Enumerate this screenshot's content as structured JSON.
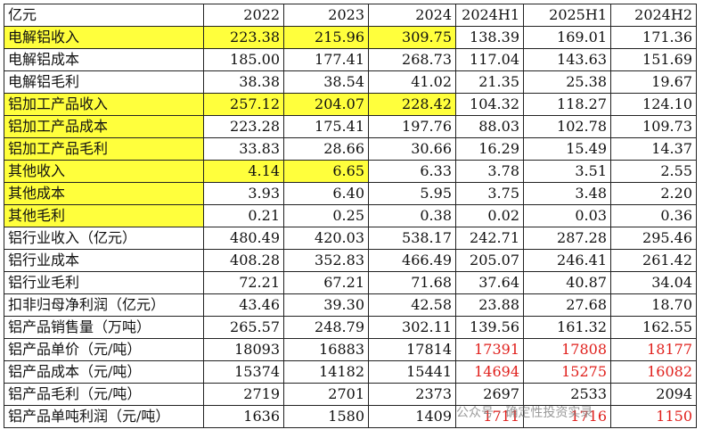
{
  "table": {
    "header": [
      "亿元",
      "2022",
      "2023",
      "2024",
      "2024H1",
      "2025H1",
      "2024H2"
    ],
    "rows": [
      [
        "电解铝收入",
        "223.38",
        "215.96",
        "309.75",
        "138.39",
        "169.01",
        "171.36"
      ],
      [
        "电解铝成本",
        "185.00",
        "177.41",
        "268.73",
        "117.04",
        "143.63",
        "151.69"
      ],
      [
        "电解铝毛利",
        "38.38",
        "38.54",
        "41.02",
        "21.35",
        "25.38",
        "19.67"
      ],
      [
        "铝加工产品收入",
        "257.12",
        "204.07",
        "228.42",
        "104.32",
        "118.27",
        "124.10"
      ],
      [
        "铝加工产品成本",
        "223.28",
        "175.41",
        "197.76",
        "88.03",
        "102.78",
        "109.73"
      ],
      [
        "铝加工产品毛利",
        "33.83",
        "28.66",
        "30.66",
        "16.29",
        "15.49",
        "14.37"
      ],
      [
        "其他收入",
        "4.14",
        "6.65",
        "6.33",
        "3.78",
        "3.51",
        "2.55"
      ],
      [
        "其他成本",
        "3.93",
        "6.40",
        "5.95",
        "3.75",
        "3.48",
        "2.20"
      ],
      [
        "其他毛利",
        "0.21",
        "0.25",
        "0.38",
        "0.02",
        "0.03",
        "0.36"
      ],
      [
        "铝行业收入（亿元）",
        "480.49",
        "420.03",
        "538.17",
        "242.71",
        "287.28",
        "295.46"
      ],
      [
        "铝行业成本",
        "408.28",
        "352.83",
        "466.49",
        "205.07",
        "246.41",
        "261.42"
      ],
      [
        "铝行业毛利",
        "72.21",
        "67.21",
        "71.68",
        "37.64",
        "40.87",
        "34.04"
      ],
      [
        "扣非归母净利润（亿元）",
        "43.46",
        "39.30",
        "42.58",
        "23.88",
        "27.68",
        "18.70"
      ],
      [
        "铝产品销售量（万吨）",
        "265.57",
        "248.79",
        "302.11",
        "139.56",
        "161.32",
        "162.55"
      ],
      [
        "铝产品单价（元/吨）",
        "18093",
        "16883",
        "17814",
        "17391",
        "17808",
        "18177"
      ],
      [
        "铝产品成本（元/吨）",
        "15374",
        "14182",
        "15441",
        "14694",
        "15275",
        "16082"
      ],
      [
        "铝产品毛利（元/吨）",
        "2719",
        "2701",
        "2373",
        "2697",
        "2533",
        "2094"
      ],
      [
        "铝产品单吨利润（元/吨）",
        "1636",
        "1580",
        "1409",
        "1711",
        "1716",
        "1150"
      ]
    ]
  },
  "watermark": "公众号 · 确定性投资实录"
}
